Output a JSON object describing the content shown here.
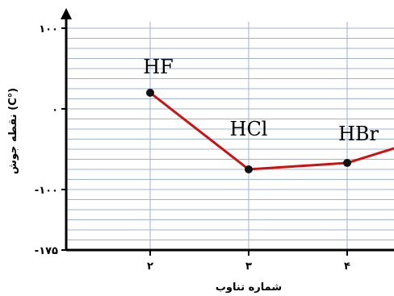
{
  "chart_data": {
    "type": "line",
    "xlabel": "شماره تناوب",
    "ylabel": "نقطه جوش (C°)",
    "x": [
      2,
      3,
      4,
      5
    ],
    "xticks": [
      {
        "value": 2,
        "label": "۲"
      },
      {
        "value": 3,
        "label": "۳"
      },
      {
        "value": 4,
        "label": "۴"
      }
    ],
    "yticks": [
      {
        "value": 100,
        "label": "۱۰۰"
      },
      {
        "value": 0,
        "label": "۰"
      },
      {
        "value": -100,
        "label": "-۱۰۰"
      },
      {
        "value": -175,
        "label": "-۱۷۵"
      }
    ],
    "xlim": [
      1,
      5
    ],
    "ylim": [
      -175,
      100
    ],
    "grid": true,
    "color": "#cc1111",
    "points": [
      {
        "x": 2,
        "y": 20,
        "label": "HF",
        "marker": true
      },
      {
        "x": 3,
        "y": -75,
        "label": "HCl",
        "marker": true
      },
      {
        "x": 4,
        "y": -67,
        "label": "HBr",
        "marker": true
      },
      {
        "x": 4.5,
        "y": -48,
        "label": "",
        "marker": false
      }
    ]
  }
}
